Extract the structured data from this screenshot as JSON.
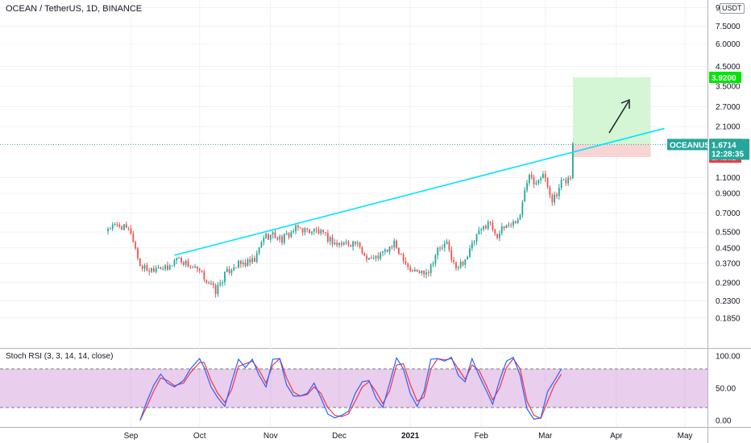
{
  "header": {
    "symbol_title": "OCEAN / TetherUS, 1D, BINANCE",
    "unit_badge": "USDT"
  },
  "rsi_panel": {
    "title": "Stoch RSI (3, 3, 14, 14, close)",
    "ticks": [
      "100.00",
      "50.00",
      "0.00"
    ],
    "upper_band": 80,
    "lower_band": 20,
    "band_color": "#ce93d8",
    "k_color": "#2962ff",
    "d_color": "#f23645"
  },
  "price_tags": {
    "target": "3.9200",
    "last_high": "1.6744",
    "symbol_label": "OCEANUSDT",
    "last_price": "1.6714",
    "countdown": "12:28:35",
    "stop": "1.4252"
  },
  "colors": {
    "up": "#26a69a",
    "down": "#ef5350",
    "trendline": "#00e5ff",
    "target_zone": "#ccf5cc",
    "stop_zone": "#f8cccc"
  },
  "chart_data": {
    "type": "candlestick",
    "scale": "log",
    "y_ticks": [
      "9.5000",
      "7.5000",
      "6.0000",
      "4.5000",
      "3.5000",
      "2.7000",
      "2.1000",
      "1.1000",
      "0.9000",
      "0.7000",
      "0.5500",
      "0.4500",
      "0.3700",
      "0.2900",
      "0.2300",
      "0.1850"
    ],
    "x_ticks": [
      "Sep",
      "Oct",
      "Nov",
      "Dec",
      "2021",
      "Feb",
      "Mar",
      "Apr",
      "May"
    ],
    "close_path": [
      [
        "2020-08-22",
        0.58
      ],
      [
        "2020-08-27",
        0.6
      ],
      [
        "2020-09-01",
        0.55
      ],
      [
        "2020-09-05",
        0.36
      ],
      [
        "2020-09-09",
        0.34
      ],
      [
        "2020-09-13",
        0.36
      ],
      [
        "2020-09-17",
        0.34
      ],
      [
        "2020-09-21",
        0.4
      ],
      [
        "2020-09-25",
        0.37
      ],
      [
        "2020-10-01",
        0.33
      ],
      [
        "2020-10-05",
        0.29
      ],
      [
        "2020-10-08",
        0.26
      ],
      [
        "2020-10-12",
        0.32
      ],
      [
        "2020-10-16",
        0.36
      ],
      [
        "2020-10-21",
        0.37
      ],
      [
        "2020-10-25",
        0.38
      ],
      [
        "2020-10-29",
        0.52
      ],
      [
        "2020-11-02",
        0.53
      ],
      [
        "2020-11-06",
        0.5
      ],
      [
        "2020-11-10",
        0.55
      ],
      [
        "2020-11-13",
        0.58
      ],
      [
        "2020-11-17",
        0.56
      ],
      [
        "2020-11-21",
        0.56
      ],
      [
        "2020-11-25",
        0.52
      ],
      [
        "2020-11-30",
        0.47
      ],
      [
        "2020-12-04",
        0.48
      ],
      [
        "2020-12-08",
        0.48
      ],
      [
        "2020-12-12",
        0.41
      ],
      [
        "2020-12-16",
        0.39
      ],
      [
        "2020-12-20",
        0.42
      ],
      [
        "2020-12-25",
        0.47
      ],
      [
        "2020-12-29",
        0.4
      ],
      [
        "2021-01-01",
        0.34
      ],
      [
        "2021-01-05",
        0.33
      ],
      [
        "2021-01-09",
        0.34
      ],
      [
        "2021-01-13",
        0.44
      ],
      [
        "2021-01-17",
        0.47
      ],
      [
        "2021-01-21",
        0.34
      ],
      [
        "2021-01-26",
        0.41
      ],
      [
        "2021-01-30",
        0.52
      ],
      [
        "2021-02-04",
        0.63
      ],
      [
        "2021-02-08",
        0.53
      ],
      [
        "2021-02-12",
        0.6
      ],
      [
        "2021-02-15",
        0.62
      ],
      [
        "2021-02-18",
        0.67
      ],
      [
        "2021-02-20",
        0.95
      ],
      [
        "2021-02-22",
        1.2
      ],
      [
        "2021-02-24",
        1.05
      ],
      [
        "2021-02-26",
        1.1
      ],
      [
        "2021-02-28",
        1.14
      ],
      [
        "2021-03-02",
        0.98
      ],
      [
        "2021-03-04",
        0.84
      ],
      [
        "2021-03-06",
        0.87
      ],
      [
        "2021-03-08",
        1.02
      ],
      [
        "2021-03-10",
        1.06
      ],
      [
        "2021-03-12",
        1.1
      ],
      [
        "2021-03-13",
        1.67
      ]
    ],
    "trendline": [
      [
        "2020-09-20",
        0.41
      ],
      [
        "2021-04-22",
        2.05
      ]
    ],
    "long_position": {
      "from": "2021-03-13",
      "to": "2021-04-16",
      "entry": 1.6714,
      "stop": 1.4252,
      "target": 3.92
    },
    "stoch_rsi": {
      "k": [
        [
          0,
          0
        ],
        [
          3,
          30
        ],
        [
          6,
          55
        ],
        [
          9,
          72
        ],
        [
          12,
          58
        ],
        [
          15,
          52
        ],
        [
          19,
          62
        ],
        [
          22,
          80
        ],
        [
          26,
          96
        ],
        [
          28,
          82
        ],
        [
          31,
          52
        ],
        [
          34,
          35
        ],
        [
          37,
          22
        ],
        [
          40,
          60
        ],
        [
          43,
          95
        ],
        [
          46,
          82
        ],
        [
          49,
          95
        ],
        [
          52,
          70
        ],
        [
          55,
          52
        ],
        [
          58,
          95
        ],
        [
          61,
          96
        ],
        [
          64,
          55
        ],
        [
          67,
          38
        ],
        [
          70,
          38
        ],
        [
          73,
          42
        ],
        [
          76,
          58
        ],
        [
          79,
          35
        ],
        [
          82,
          10
        ],
        [
          85,
          4
        ],
        [
          88,
          8
        ],
        [
          91,
          14
        ],
        [
          94,
          42
        ],
        [
          97,
          60
        ],
        [
          100,
          62
        ],
        [
          103,
          35
        ],
        [
          106,
          20
        ],
        [
          109,
          58
        ],
        [
          112,
          97
        ],
        [
          115,
          80
        ],
        [
          118,
          42
        ],
        [
          121,
          22
        ],
        [
          124,
          45
        ],
        [
          127,
          95
        ],
        [
          130,
          96
        ],
        [
          133,
          92
        ],
        [
          136,
          98
        ],
        [
          139,
          70
        ],
        [
          142,
          60
        ],
        [
          145,
          96
        ],
        [
          148,
          70
        ],
        [
          151,
          48
        ],
        [
          154,
          25
        ],
        [
          157,
          62
        ],
        [
          160,
          92
        ],
        [
          163,
          98
        ],
        [
          166,
          70
        ],
        [
          169,
          18
        ],
        [
          172,
          2
        ],
        [
          175,
          4
        ],
        [
          178,
          45
        ],
        [
          181,
          62
        ],
        [
          184,
          80
        ]
      ],
      "d": [
        [
          0,
          0
        ],
        [
          3,
          22
        ],
        [
          6,
          46
        ],
        [
          9,
          66
        ],
        [
          12,
          62
        ],
        [
          15,
          54
        ],
        [
          19,
          58
        ],
        [
          22,
          74
        ],
        [
          26,
          90
        ],
        [
          28,
          90
        ],
        [
          31,
          62
        ],
        [
          34,
          42
        ],
        [
          37,
          28
        ],
        [
          40,
          48
        ],
        [
          43,
          84
        ],
        [
          46,
          88
        ],
        [
          49,
          92
        ],
        [
          52,
          78
        ],
        [
          55,
          58
        ],
        [
          58,
          86
        ],
        [
          61,
          96
        ],
        [
          64,
          66
        ],
        [
          67,
          44
        ],
        [
          70,
          38
        ],
        [
          73,
          40
        ],
        [
          76,
          52
        ],
        [
          79,
          42
        ],
        [
          82,
          20
        ],
        [
          85,
          8
        ],
        [
          88,
          6
        ],
        [
          91,
          10
        ],
        [
          94,
          30
        ],
        [
          97,
          52
        ],
        [
          100,
          60
        ],
        [
          103,
          45
        ],
        [
          106,
          26
        ],
        [
          109,
          46
        ],
        [
          112,
          86
        ],
        [
          115,
          88
        ],
        [
          118,
          56
        ],
        [
          121,
          30
        ],
        [
          124,
          36
        ],
        [
          127,
          80
        ],
        [
          130,
          96
        ],
        [
          133,
          94
        ],
        [
          136,
          96
        ],
        [
          139,
          80
        ],
        [
          142,
          64
        ],
        [
          145,
          86
        ],
        [
          148,
          78
        ],
        [
          151,
          56
        ],
        [
          154,
          32
        ],
        [
          157,
          50
        ],
        [
          160,
          82
        ],
        [
          163,
          96
        ],
        [
          166,
          80
        ],
        [
          169,
          30
        ],
        [
          172,
          8
        ],
        [
          175,
          3
        ],
        [
          178,
          30
        ],
        [
          181,
          55
        ],
        [
          184,
          72
        ]
      ]
    }
  }
}
